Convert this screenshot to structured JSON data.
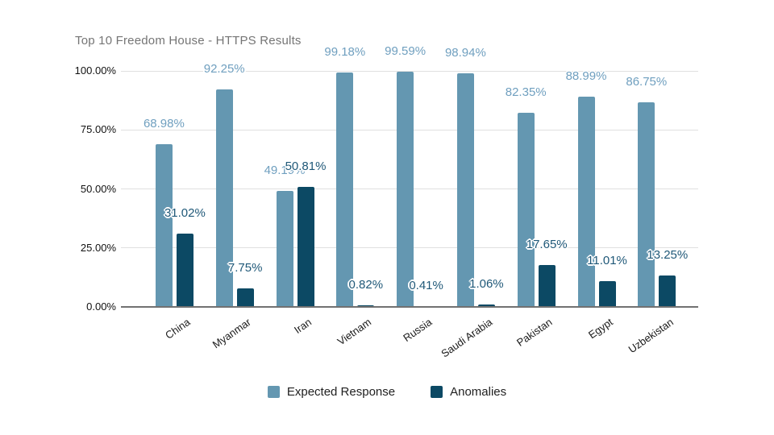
{
  "title": "Top 10 Freedom House - HTTPS Results",
  "colors": {
    "background": "#ffffff",
    "expected_bar": "#6497b1",
    "anomalies_bar": "#0c4964",
    "expected_label_text": "#6f9fbf",
    "anomaly_label_text": "#1f5878",
    "title_text": "#757575",
    "gridline": "#e0e0e0",
    "axis_line": "#717171",
    "axis_text": "#1a1a1a"
  },
  "legend": {
    "items": [
      {
        "name": "Expected Response",
        "color": "#6497b1"
      },
      {
        "name": "Anomalies",
        "color": "#0c4964"
      }
    ]
  },
  "chart_data": {
    "type": "bar",
    "title": "Top 10 Freedom House - HTTPS Results",
    "xlabel": "",
    "ylabel": "",
    "ylim": [
      0,
      100
    ],
    "grid": true,
    "legend_position": "bottom",
    "categories": [
      "China",
      "Myanmar",
      "Iran",
      "Vietnam",
      "Russia",
      "Saudi Arabia",
      "Pakistan",
      "Egypt",
      "Uzbekistan"
    ],
    "y_ticks": [
      {
        "label": "0.00%",
        "value": 0
      },
      {
        "label": "25.00%",
        "value": 25
      },
      {
        "label": "50.00%",
        "value": 50
      },
      {
        "label": "75.00%",
        "value": 75
      },
      {
        "label": "100.00%",
        "value": 100
      }
    ],
    "series": [
      {
        "name": "Expected Response",
        "color": "#6497b1",
        "values": [
          68.98,
          92.25,
          49.19,
          99.18,
          99.59,
          98.94,
          82.35,
          88.99,
          86.75
        ],
        "labels": [
          "68.98%",
          "92.25%",
          "49.19%",
          "99.18%",
          "99.59%",
          "98.94%",
          "82.35%",
          "88.99%",
          "86.75%"
        ]
      },
      {
        "name": "Anomalies",
        "color": "#0c4964",
        "values": [
          31.02,
          7.75,
          50.81,
          0.82,
          0.41,
          1.06,
          17.65,
          11.01,
          13.25
        ],
        "labels": [
          "31.02%",
          "7.75%",
          "50.81%",
          "0.82%",
          "0.41%",
          "1.06%",
          "17.65%",
          "11.01%",
          "13.25%"
        ]
      }
    ]
  }
}
